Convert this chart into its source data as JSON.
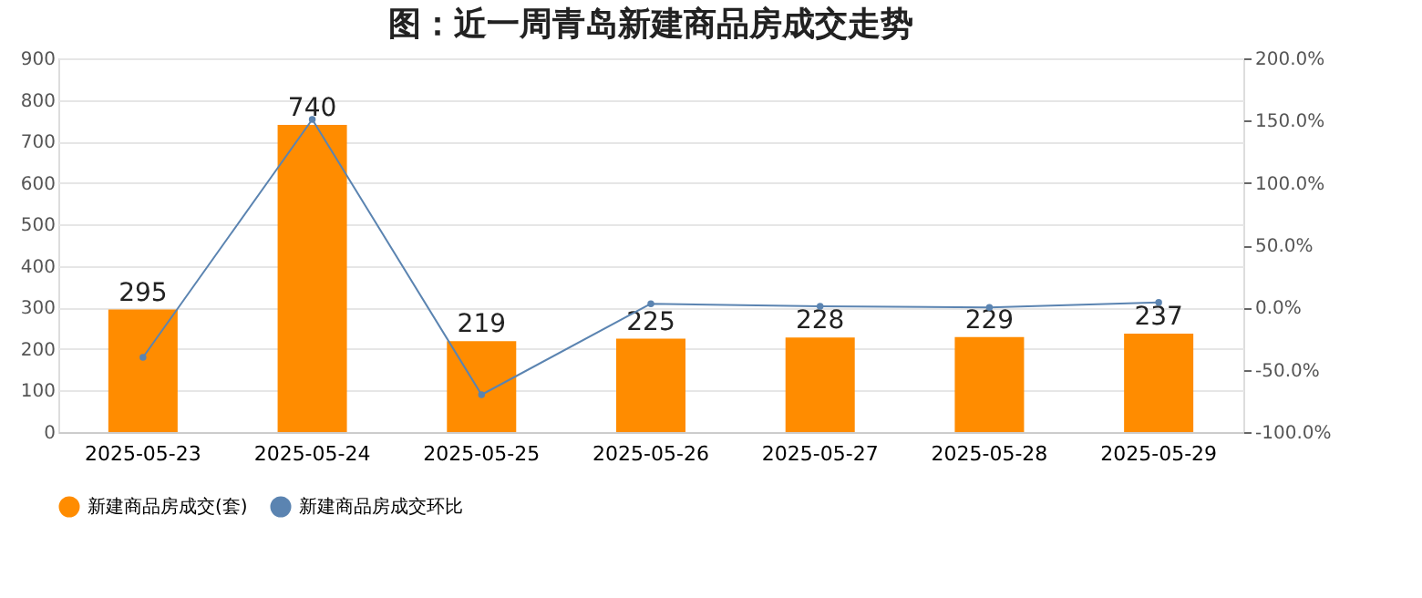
{
  "chart_data": {
    "type": "bar",
    "title": "图：近一周青岛新建商品房成交走势",
    "categories": [
      "2025-05-23",
      "2025-05-24",
      "2025-05-25",
      "2025-05-26",
      "2025-05-27",
      "2025-05-28",
      "2025-05-29"
    ],
    "series": [
      {
        "name": "新建商品房成交(套)",
        "color": "#ff8c00",
        "values": [
          295,
          740,
          219,
          225,
          228,
          229,
          237
        ],
        "value_labels": [
          "295",
          "740",
          "219",
          "225",
          "228",
          "229",
          "237"
        ]
      },
      {
        "name": "新建商品房成交环比",
        "type": "line",
        "axis": "y2",
        "color": "#5b84b1",
        "marker": "circle",
        "values": [
          -40,
          151,
          -70,
          3,
          1,
          0,
          4
        ]
      }
    ],
    "ylim": [
      0,
      900
    ],
    "yticks": [
      0,
      100,
      200,
      300,
      400,
      500,
      600,
      700,
      800,
      900
    ],
    "y2lim": [
      -100,
      200
    ],
    "y2ticks": [
      {
        "value": -100,
        "label": "-100.0%"
      },
      {
        "value": -50,
        "label": "-50.0%"
      },
      {
        "value": 0,
        "label": "0.0%"
      },
      {
        "value": 50,
        "label": "50.0%"
      },
      {
        "value": 100,
        "label": "100.0%"
      },
      {
        "value": 150,
        "label": "150.0%"
      },
      {
        "value": 200,
        "label": "200.0%"
      }
    ],
    "grid": "y",
    "legend": "bottom"
  }
}
